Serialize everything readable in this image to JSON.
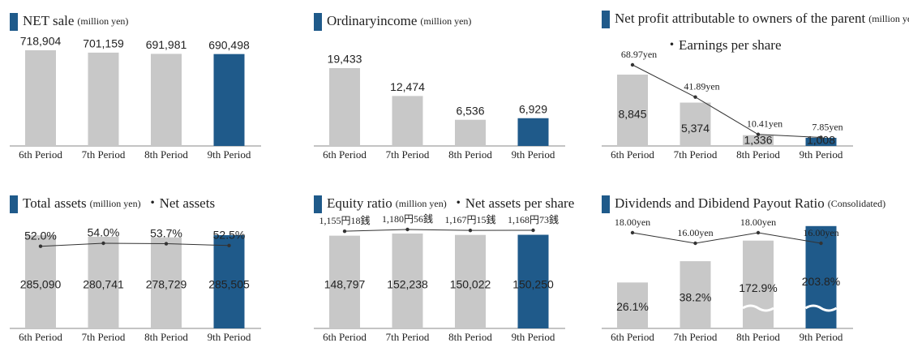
{
  "chart_data": [
    {
      "type": "bar",
      "title": "NET sale",
      "unit": "(million yen)",
      "categories": [
        "6th Period",
        "7th Period",
        "8th Period",
        "9th Period"
      ],
      "values": [
        718904,
        701159,
        691981,
        690498
      ],
      "value_labels": [
        "718,904",
        "701,159",
        "691,981",
        "690,498"
      ],
      "colors": [
        "#c8c8c8",
        "#c8c8c8",
        "#c8c8c8",
        "#1f5a8a"
      ]
    },
    {
      "type": "bar",
      "title": "Ordinaryincome",
      "unit": "(million yen)",
      "categories": [
        "6th Period",
        "7th Period",
        "8th Period",
        "9th Period"
      ],
      "values": [
        19433,
        12474,
        6536,
        6929
      ],
      "value_labels": [
        "19,433",
        "12,474",
        "6,536",
        "6,929"
      ],
      "colors": [
        "#c8c8c8",
        "#c8c8c8",
        "#c8c8c8",
        "#1f5a8a"
      ]
    },
    {
      "type": "bar",
      "title": "Net profit attributable to owners of the parent",
      "unit": "(million yen)",
      "categories": [
        "6th Period",
        "7th Period",
        "8th Period",
        "9th Period"
      ],
      "values": [
        8845,
        5374,
        1336,
        1008
      ],
      "value_labels": [
        "8,845",
        "5,374",
        "1,336",
        "1,008"
      ],
      "colors": [
        "#c8c8c8",
        "#c8c8c8",
        "#c8c8c8",
        "#1f5a8a"
      ],
      "line": {
        "name": "・Earnings per share",
        "color": "#333333",
        "values": [
          68.97,
          41.89,
          10.41,
          7.85
        ],
        "value_labels": [
          "68.97yen",
          "41.89yen",
          "10.41yen",
          "7.85yen"
        ]
      }
    },
    {
      "type": "bar",
      "title": "Total assets",
      "unit": "(million yen)",
      "categories": [
        "6th Period",
        "7th Period",
        "8th Period",
        "9th Period"
      ],
      "values": [
        285090,
        280741,
        278729,
        285505
      ],
      "value_labels": [
        "285,090",
        "280,741",
        "278,729",
        "285,505"
      ],
      "colors": [
        "#c8c8c8",
        "#c8c8c8",
        "#c8c8c8",
        "#1f5a8a"
      ],
      "line": {
        "name": "・Net assets",
        "color": "#333333",
        "values": [
          52.0,
          54.0,
          53.7,
          52.5
        ],
        "value_labels": [
          "52.0%",
          "54.0%",
          "53.7%",
          "52.5%"
        ]
      }
    },
    {
      "type": "bar",
      "title": "Equity ratio",
      "unit": "(million yen)",
      "categories": [
        "6th Period",
        "7th Period",
        "8th Period",
        "9th Period"
      ],
      "values": [
        148797,
        152238,
        150022,
        150250
      ],
      "value_labels": [
        "148,797",
        "152,238",
        "150,022",
        "150,250"
      ],
      "colors": [
        "#c8c8c8",
        "#c8c8c8",
        "#c8c8c8",
        "#1f5a8a"
      ],
      "line": {
        "name": "・Net assets per share",
        "color": "#333333",
        "values": [
          1155.18,
          1180.56,
          1167.15,
          1168.73
        ],
        "value_labels": [
          "1,155円18銭",
          "1,180円56銭",
          "1,167円15銭",
          "1,168円73銭"
        ]
      }
    },
    {
      "type": "bar",
      "title": "Dividends and Dibidend Payout Ratio",
      "unit": "(Consolidated)",
      "categories": [
        "6th Period",
        "7th Period",
        "8th Period",
        "9th Period"
      ],
      "values": [
        26.1,
        38.2,
        172.9,
        203.8
      ],
      "value_labels": [
        "26.1%",
        "38.2%",
        "172.9%",
        "203.8%"
      ],
      "colors": [
        "#c8c8c8",
        "#c8c8c8",
        "#c8c8c8",
        "#1f5a8a"
      ],
      "line": {
        "color": "#333333",
        "values": [
          18.0,
          16.0,
          18.0,
          16.0
        ],
        "value_labels": [
          "18.00yen",
          "16.00yen",
          "18.00yen",
          "16.00yen"
        ]
      }
    }
  ]
}
